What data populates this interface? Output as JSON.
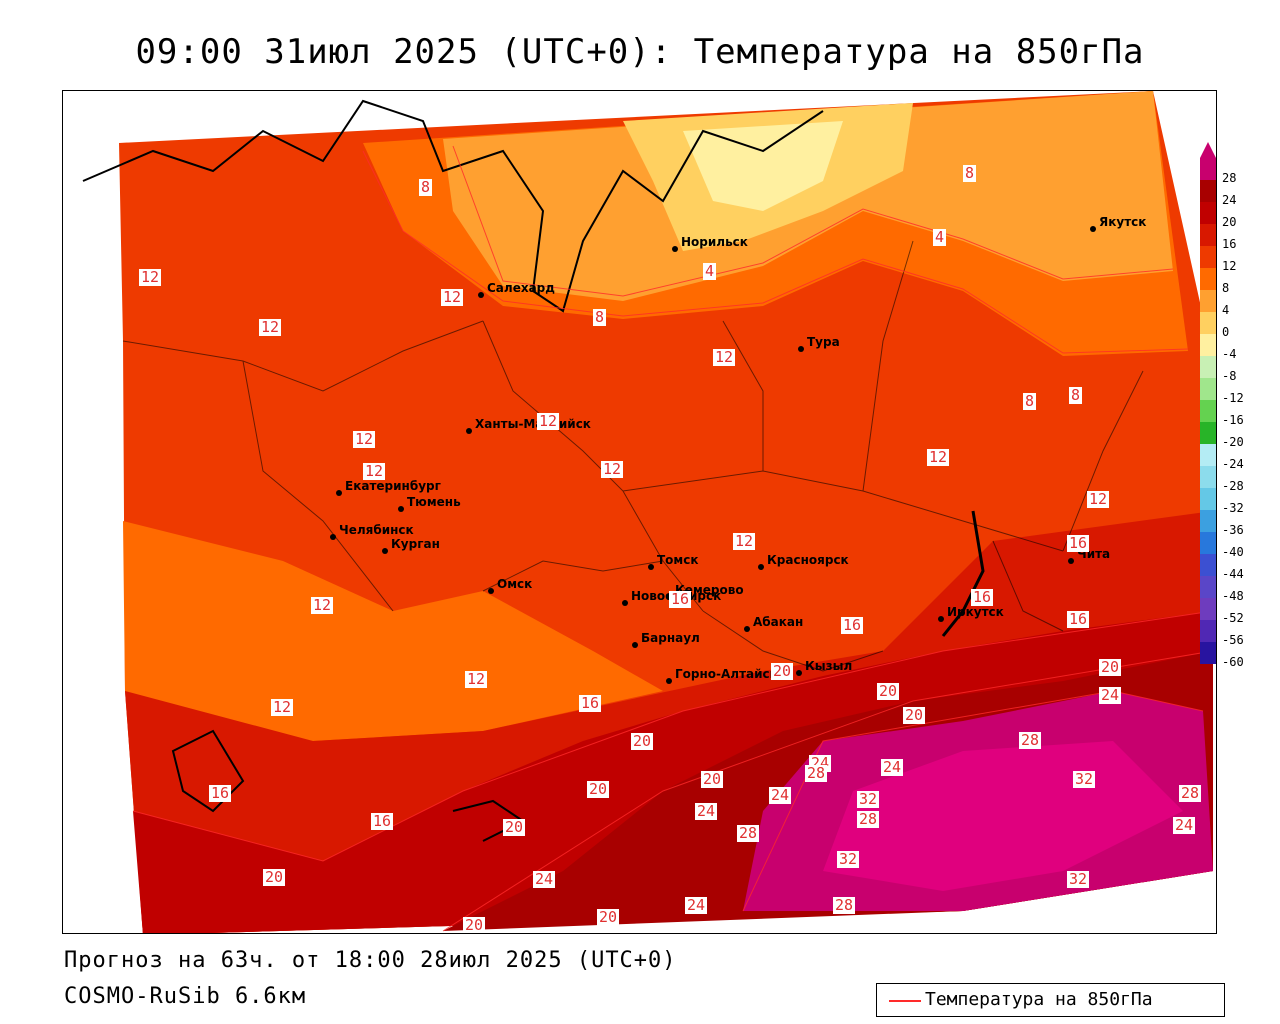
{
  "title": "09:00 31июл 2025 (UTC+0): Температура на 850гПа",
  "footer": {
    "forecast": "Прогноз на 63ч. от 18:00 28июл 2025 (UTC+0)",
    "model": "COSMO-RuSib 6.6км"
  },
  "legend": {
    "label": "Температура на 850гПа",
    "line_color": "#ff2a2a"
  },
  "colorbar": {
    "ticks": [
      "28",
      "24",
      "20",
      "16",
      "12",
      "8",
      "4",
      "0",
      "-4",
      "-8",
      "-12",
      "-16",
      "-20",
      "-24",
      "-28",
      "-32",
      "-36",
      "-40",
      "-44",
      "-48",
      "-52",
      "-56",
      "-60"
    ],
    "colors": [
      "#c8006e",
      "#a80000",
      "#c00000",
      "#d81800",
      "#ee3a00",
      "#ff6a00",
      "#ffa030",
      "#ffd060",
      "#fff0a0",
      "#c8f0b4",
      "#a0e68c",
      "#64d250",
      "#28b428",
      "#b4ecf4",
      "#8cdcec",
      "#64c8e6",
      "#3ca0e0",
      "#2878dc",
      "#3c50d2",
      "#5a46c8",
      "#6e3cbe",
      "#5028b4",
      "#2814a0"
    ]
  },
  "cities": [
    {
      "name": "Норильск"
    },
    {
      "name": "Якутск"
    },
    {
      "name": "Салехард"
    },
    {
      "name": "Тура"
    },
    {
      "name": "Ханты-Мансийск"
    },
    {
      "name": "Екатеринбург"
    },
    {
      "name": "Тюмень"
    },
    {
      "name": "Челябинск"
    },
    {
      "name": "Курган"
    },
    {
      "name": "Омск"
    },
    {
      "name": "Новосибирск"
    },
    {
      "name": "Томск"
    },
    {
      "name": "Кемерово"
    },
    {
      "name": "Красноярск"
    },
    {
      "name": "Абакан"
    },
    {
      "name": "Барнаул"
    },
    {
      "name": "Горно-Алтайск"
    },
    {
      "name": "Кызыл"
    },
    {
      "name": "Иркутск"
    },
    {
      "name": "Чита"
    }
  ],
  "isotherm_labels": [
    "8",
    "4",
    "12",
    "16",
    "20",
    "24",
    "28",
    "32"
  ]
}
